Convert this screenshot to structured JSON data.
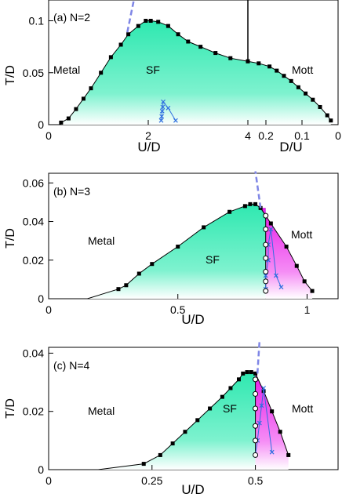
{
  "chart_data": [
    {
      "type": "line",
      "panel_label": "(a) N=2",
      "ylabel": "T/D",
      "xlabel_left": "U/D",
      "xlabel_right": "D/U",
      "ylim": [
        0,
        0.12
      ],
      "xlim_left": [
        0,
        4
      ],
      "xlim_right": [
        0.25,
        0
      ],
      "yticks": [
        0,
        0.05,
        0.1
      ],
      "ytick_labels": [
        "0",
        "0.05",
        "0.1"
      ],
      "xticks_left": [
        0,
        2,
        4
      ],
      "xtick_labels_left": [
        "0",
        "2",
        "4"
      ],
      "xticks_right": [
        0.2,
        0.1,
        0
      ],
      "xtick_labels_right": [
        "0.2",
        "0.1",
        "0"
      ],
      "region_labels": {
        "metal": "Metal",
        "sf": "SF",
        "mott": "Mott"
      },
      "colors": {
        "sf": "#2ee8b0",
        "mott": "#f040f0",
        "dashed": "#7f86e6",
        "cross": "#2f6fe0"
      },
      "series": [
        {
          "kind": "sf_boundary_left",
          "x": [
            0.25,
            0.4,
            0.55,
            0.7,
            0.85,
            1.05,
            1.25,
            1.45,
            1.6,
            1.8,
            1.95,
            2.05,
            2.2,
            2.4,
            2.6,
            2.8,
            3.05,
            3.35,
            3.65,
            4.0
          ],
          "y": [
            0.002,
            0.006,
            0.015,
            0.025,
            0.035,
            0.05,
            0.065,
            0.077,
            0.087,
            0.095,
            0.1,
            0.1,
            0.099,
            0.095,
            0.087,
            0.08,
            0.075,
            0.069,
            0.064,
            0.061
          ]
        },
        {
          "kind": "sf_boundary_right",
          "x": [
            0.25,
            0.22,
            0.19,
            0.17,
            0.15,
            0.13,
            0.11,
            0.09,
            0.07,
            0.05,
            0.03,
            0.02
          ],
          "y": [
            0.061,
            0.059,
            0.056,
            0.052,
            0.047,
            0.042,
            0.036,
            0.03,
            0.024,
            0.017,
            0.009,
            0.004
          ]
        },
        {
          "kind": "dashed",
          "x": [
            1.58,
            1.72
          ],
          "y": [
            0.089,
            0.122
          ]
        },
        {
          "kind": "crosses",
          "x": [
            2.26,
            2.27,
            2.28,
            2.29,
            2.3,
            2.4,
            2.55
          ],
          "y": [
            0.004,
            0.008,
            0.013,
            0.017,
            0.022,
            0.016,
            0.004
          ]
        }
      ]
    },
    {
      "type": "line",
      "panel_label": "(b) N=3",
      "ylabel": "T/D",
      "xlabel": "U/D",
      "ylim": [
        0,
        0.065
      ],
      "xlim": [
        0,
        1.12
      ],
      "yticks": [
        0,
        0.02,
        0.04,
        0.06
      ],
      "ytick_labels": [
        "0",
        "0.02",
        "0.04",
        "0.06"
      ],
      "xticks": [
        0,
        0.5,
        1
      ],
      "xtick_labels": [
        "0",
        "0.5",
        "1"
      ],
      "region_labels": {
        "metal": "Metal",
        "sf": "SF",
        "mott": "Mott"
      },
      "series": [
        {
          "kind": "sf_boundary",
          "x": [
            0.15,
            0.27,
            0.3,
            0.35,
            0.4,
            0.5,
            0.6,
            0.7,
            0.76,
            0.78,
            0.8,
            0.82
          ],
          "y": [
            0.0,
            0.005,
            0.007,
            0.013,
            0.018,
            0.027,
            0.037,
            0.045,
            0.048,
            0.049,
            0.049,
            0.047
          ]
        },
        {
          "kind": "mott_boundary",
          "x": [
            0.82,
            0.86,
            0.92,
            0.96,
            0.99,
            1.02
          ],
          "y": [
            0.047,
            0.039,
            0.027,
            0.017,
            0.009,
            0.004
          ]
        },
        {
          "kind": "open_circles",
          "x": [
            0.84,
            0.84,
            0.84,
            0.84,
            0.84,
            0.84,
            0.84
          ],
          "y": [
            0.004,
            0.009,
            0.014,
            0.021,
            0.028,
            0.036,
            0.043
          ]
        },
        {
          "kind": "dashed",
          "x": [
            0.82,
            0.8
          ],
          "y": [
            0.047,
            0.066
          ]
        },
        {
          "kind": "crosses",
          "x": [
            0.84,
            0.84,
            0.85,
            0.85,
            0.86,
            0.88,
            0.9
          ],
          "y": [
            0.005,
            0.012,
            0.02,
            0.028,
            0.036,
            0.012,
            0.006
          ]
        }
      ]
    },
    {
      "type": "line",
      "panel_label": "(c) N=4",
      "ylabel": "T/D",
      "xlabel": "U/D",
      "ylim": [
        0,
        0.042
      ],
      "xlim": [
        0,
        0.7
      ],
      "yticks": [
        0,
        0.02,
        0.04
      ],
      "ytick_labels": [
        "0",
        "0.02",
        "0.04"
      ],
      "xticks": [
        0,
        0.25,
        0.5
      ],
      "xtick_labels": [
        "0",
        "0.25",
        "0.5"
      ],
      "region_labels": {
        "metal": "Metal",
        "sf": "SF",
        "mott": "Mott"
      },
      "series": [
        {
          "kind": "sf_boundary",
          "x": [
            0.12,
            0.23,
            0.27,
            0.3,
            0.33,
            0.36,
            0.39,
            0.42,
            0.44,
            0.46,
            0.47,
            0.48,
            0.49,
            0.5
          ],
          "y": [
            0.0,
            0.002,
            0.005,
            0.009,
            0.013,
            0.017,
            0.021,
            0.025,
            0.028,
            0.031,
            0.033,
            0.0335,
            0.0335,
            0.033
          ]
        },
        {
          "kind": "mott_boundary",
          "x": [
            0.5,
            0.52,
            0.54,
            0.56,
            0.58
          ],
          "y": [
            0.033,
            0.027,
            0.02,
            0.013,
            0.005
          ]
        },
        {
          "kind": "open_circles",
          "x": [
            0.5,
            0.5,
            0.5,
            0.5,
            0.5,
            0.5
          ],
          "y": [
            0.005,
            0.01,
            0.015,
            0.021,
            0.026,
            0.031
          ]
        },
        {
          "kind": "dashed",
          "x": [
            0.505,
            0.51
          ],
          "y": [
            0.033,
            0.044
          ]
        },
        {
          "kind": "crosses",
          "x": [
            0.5,
            0.505,
            0.51,
            0.515,
            0.52,
            0.54
          ],
          "y": [
            0.005,
            0.01,
            0.016,
            0.022,
            0.028,
            0.006
          ]
        }
      ]
    }
  ]
}
